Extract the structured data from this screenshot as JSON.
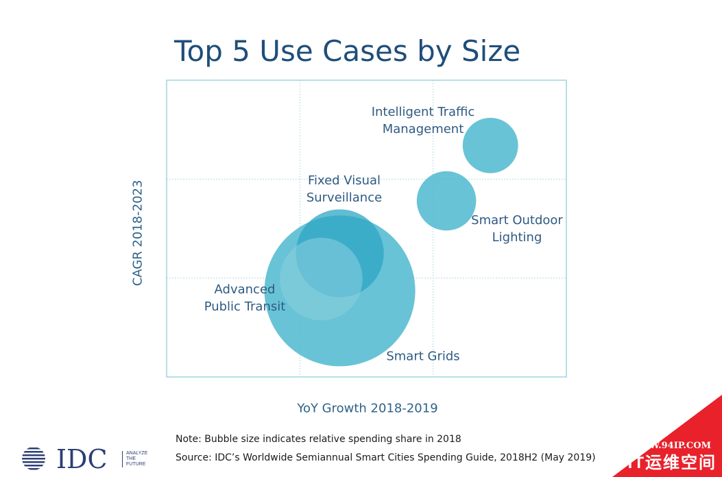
{
  "title": "Top 5 Use Cases by Size",
  "chart_data": {
    "type": "bubble",
    "xlabel": "YoY Growth 2018-2019",
    "ylabel": "CAGR 2018-2023",
    "grid": true,
    "points": [
      {
        "label": "Smart Grids",
        "x": 1.3,
        "y": 0.87,
        "size": 100
      },
      {
        "label": "Fixed Visual Surveillance",
        "x": 1.3,
        "y": 1.25,
        "size": 34
      },
      {
        "label": "Advanced Public Transit",
        "x": 1.16,
        "y": 0.99,
        "size": 30
      },
      {
        "label": "Smart Outdoor Lighting",
        "x": 2.1,
        "y": 1.78,
        "size": 15.5
      },
      {
        "label": "Intelligent Traffic Management",
        "x": 2.43,
        "y": 2.34,
        "size": 13.5
      }
    ],
    "labels": [
      {
        "label": "Intelligent Traffic",
        "line2": "Management"
      },
      {
        "label": "Fixed Visual",
        "line2": "Surveillance"
      },
      {
        "label": "Smart Outdoor",
        "line2": "Lighting"
      },
      {
        "label": "Advanced",
        "line2": "Public Transit"
      },
      {
        "label": "Smart Grids",
        "line2": ""
      }
    ]
  },
  "note": "Note: Bubble size indicates relative spending share in 2018",
  "source": "Source: IDC’s Worldwide Semiannual Smart Cities Spending Guide, 2018H2 (May 2019)",
  "logo": {
    "name": "IDC",
    "tagline": [
      "ANALYZE",
      "THE",
      "FUTURE"
    ]
  },
  "watermark": {
    "url": "WWW.94IP.COM",
    "brand": "IT运维空间"
  },
  "colors": {
    "title": "#1f4e79",
    "bubble": "#4fb8cf",
    "grid": "#b8dce6",
    "watermark": "#e8212b"
  }
}
